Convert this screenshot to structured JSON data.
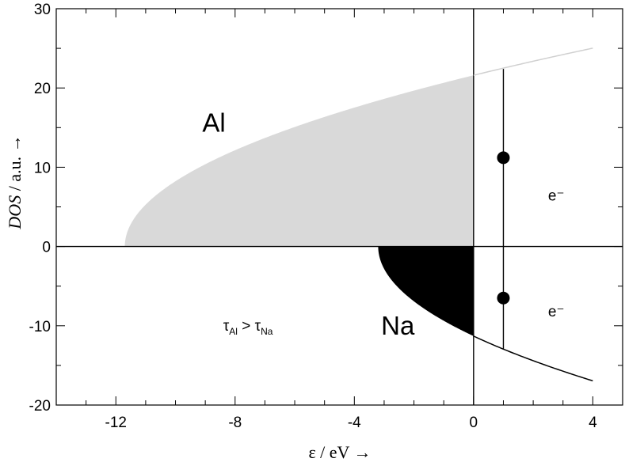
{
  "chart_data": {
    "type": "area",
    "xlabel": "ε / eV →",
    "ylabel": {
      "italic_part": "DOS",
      "rest": " / a.u.  →"
    },
    "xlim": [
      -14,
      5
    ],
    "ylim": [
      -20,
      30
    ],
    "x_ticks": [
      -12,
      -8,
      -4,
      0,
      4
    ],
    "x_tick_labels": [
      "-12",
      "-8",
      "-4",
      "0",
      "4"
    ],
    "y_ticks": [
      -20,
      -10,
      0,
      10,
      20,
      30
    ],
    "y_tick_labels": [
      "-20",
      "-10",
      "0",
      "10",
      "20",
      "30"
    ],
    "grid": false,
    "series": [
      {
        "name": "Al",
        "band_bottom": -11.7,
        "fermi_level": 0,
        "x_end": 4,
        "dos_at_fermi": 21.6,
        "fill_color": "#d9d9d9",
        "line_color": "#d0d0d0",
        "direction": "up"
      },
      {
        "name": "Na",
        "band_bottom": -3.2,
        "fermi_level": 0,
        "x_end": 4,
        "dos_at_fermi": -11.3,
        "fill_color": "#000000",
        "line_color": "#000000",
        "direction": "down"
      }
    ],
    "vertical_lines": [
      {
        "x": 0,
        "y_from": -20,
        "y_to": 30
      },
      {
        "x": 1,
        "y_from": -13,
        "y_to": 22.4
      }
    ],
    "points": [
      {
        "x": 1,
        "y": 11.2
      },
      {
        "x": 1,
        "y": -6.5
      }
    ],
    "annotations": {
      "al_label": {
        "text": "Al",
        "x": -9.1,
        "y": 14.5
      },
      "na_label": {
        "text": "Na",
        "x": -3.1,
        "y": -11.1
      },
      "electron_upper": {
        "text": "e⁻",
        "x": 2.5,
        "y": 5.8
      },
      "electron_lower": {
        "text": "e⁻",
        "x": 2.5,
        "y": -8.8
      },
      "tau_relation": {
        "tau": "τ",
        "sub_al": "Al",
        "gt": " > ",
        "sub_na": "Na",
        "x": -8.4,
        "y": -10.6
      }
    }
  }
}
